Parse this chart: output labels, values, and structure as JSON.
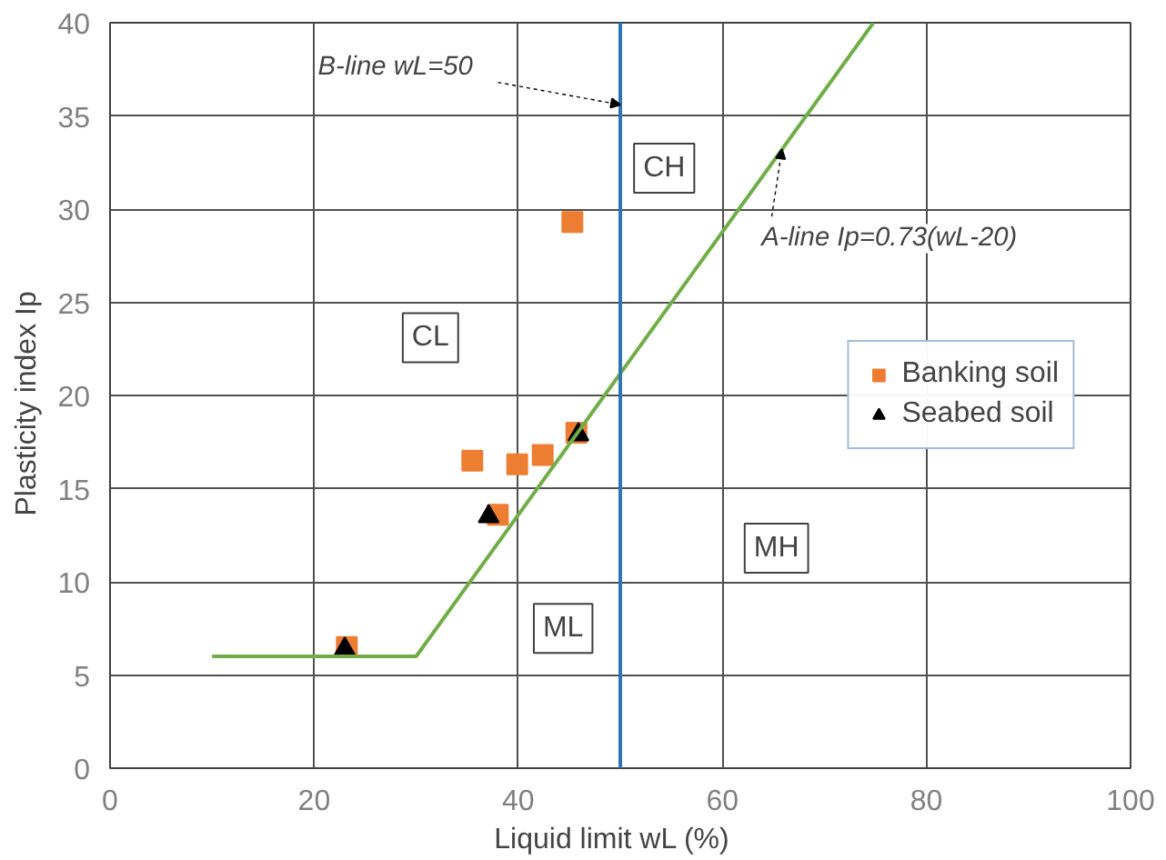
{
  "chart_data": {
    "type": "scatter",
    "xlabel": "Liquid limit   wL (%)",
    "ylabel": "Plasticity index   Ip",
    "xlim": [
      0,
      100
    ],
    "xticks": [
      0,
      20,
      40,
      60,
      80,
      100
    ],
    "ylim": [
      0,
      40
    ],
    "yticks": [
      0,
      5,
      10,
      15,
      20,
      25,
      30,
      35,
      40
    ],
    "grid": true,
    "legend": "right",
    "series": [
      {
        "name": "Banking soil",
        "marker": "square",
        "color": "#ed7d31",
        "x": [
          23.2,
          35.5,
          38.0,
          39.9,
          42.4,
          45.7,
          45.3
        ],
        "values": [
          6.5,
          16.5,
          13.6,
          16.3,
          16.8,
          18.0,
          29.3
        ]
      },
      {
        "name": "Seabed soil",
        "marker": "triangle",
        "color": "#000000",
        "x": [
          23.0,
          37.1,
          45.9
        ],
        "values": [
          6.4,
          13.5,
          17.9
        ]
      },
      {
        "name": "A-line      Ip=0.73(wL-20)",
        "type": "line",
        "color": "#70ad47",
        "x": [
          10,
          30,
          74.8
        ],
        "values": [
          6,
          6,
          40
        ]
      }
    ],
    "ref_lines": [
      {
        "axis": "x",
        "value": 50,
        "label": "B-line   wL=50",
        "color": "#2e75b6"
      }
    ],
    "annotations": [
      {
        "text": "CL",
        "x": 31.4,
        "y": 23.1
      },
      {
        "text": "CH",
        "x": 54.3,
        "y": 32.2
      },
      {
        "text": "ML",
        "x": 44.4,
        "y": 7.5
      },
      {
        "text": "MH",
        "x": 65.3,
        "y": 11.8
      }
    ]
  }
}
